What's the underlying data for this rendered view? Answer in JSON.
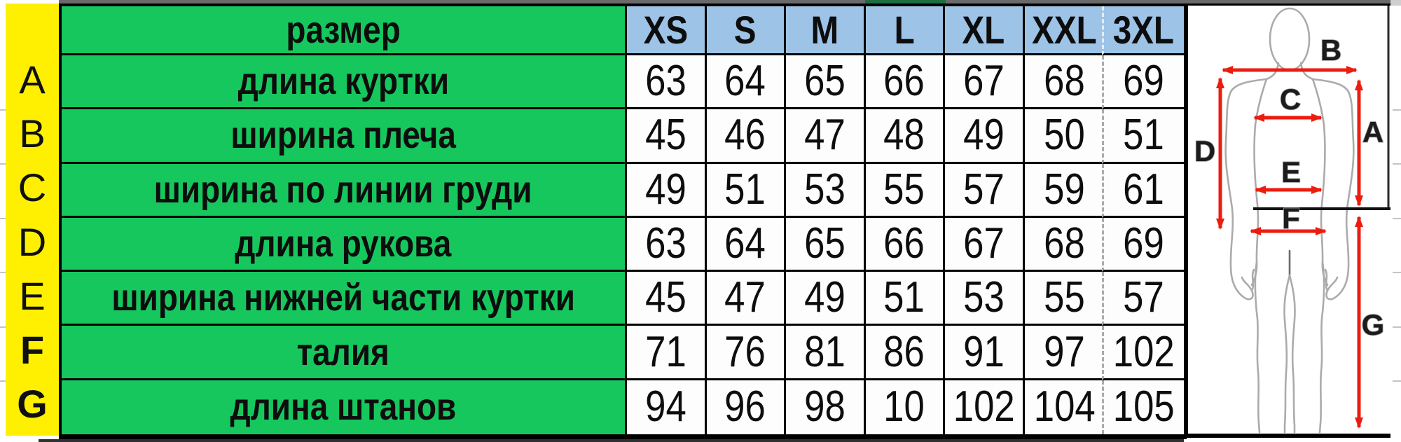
{
  "table": {
    "corner_label": "размер",
    "size_headers": [
      "XS",
      "S",
      "M",
      "L",
      "XL",
      "XXL",
      "3XL"
    ],
    "rows": [
      {
        "letter": "A",
        "label": "длина куртки",
        "values": [
          63,
          64,
          65,
          66,
          67,
          68,
          69
        ]
      },
      {
        "letter": "B",
        "label": "ширина плеча",
        "values": [
          45,
          46,
          47,
          48,
          49,
          50,
          51
        ]
      },
      {
        "letter": "C",
        "label": "ширина по линии груди",
        "values": [
          49,
          51,
          53,
          55,
          57,
          59,
          61
        ]
      },
      {
        "letter": "D",
        "label": "длина рукова",
        "values": [
          63,
          64,
          65,
          66,
          67,
          68,
          69
        ]
      },
      {
        "letter": "E",
        "label": "ширина нижней части куртки",
        "values": [
          45,
          47,
          49,
          51,
          53,
          55,
          57
        ]
      },
      {
        "letter": "F",
        "label": "талия",
        "values": [
          71,
          76,
          81,
          86,
          91,
          97,
          102
        ]
      },
      {
        "letter": "G",
        "label": "длина штанов",
        "values": [
          94,
          96,
          98,
          10,
          102,
          104,
          105
        ]
      }
    ]
  },
  "figure": {
    "labels": {
      "a": "A",
      "b": "B",
      "c": "C",
      "d": "D",
      "e": "E",
      "f": "F",
      "g": "G"
    }
  },
  "colors": {
    "row_letter_yellow": "#fef000",
    "label_green": "#16c75e",
    "header_blue": "#9dc3e6",
    "arrow_red": "#ec1c0f",
    "body_outline_gray": "#ababab",
    "top_strip_gray": "#6a6a6a",
    "top_strip_green": "#1d6f42",
    "border_black": "#000000"
  }
}
